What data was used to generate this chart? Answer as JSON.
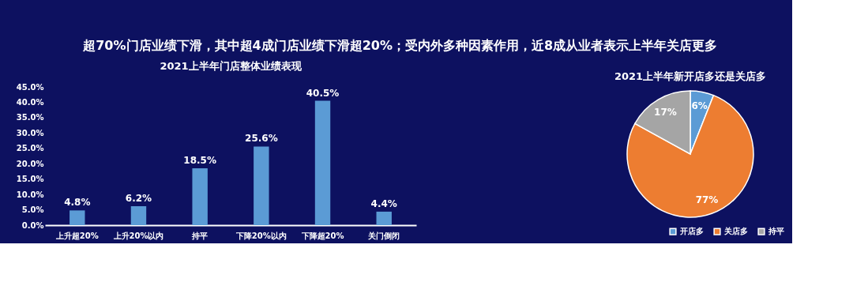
{
  "chart_data": [
    {
      "type": "bar",
      "title": "2021上半年门店整体业绩表现",
      "annotations": [
        "超70%门店业绩下滑，其中超4成门店业绩下滑超20%；受内外多种因素作用，近8成从业者表示上半年关店更多"
      ],
      "categories": [
        "上升超20%",
        "上升20%以内",
        "持平",
        "下降20%以内",
        "下降超20%",
        "关门倒闭"
      ],
      "values": [
        4.8,
        6.2,
        18.5,
        25.6,
        40.5,
        4.4
      ],
      "value_labels": [
        "4.8%",
        "6.2%",
        "18.5%",
        "25.6%",
        "40.5%",
        "4.4%"
      ],
      "color": "#5b9bd5",
      "ylim": [
        0,
        45
      ],
      "yticks": [
        {
          "value": 0,
          "label": "0.0%"
        },
        {
          "value": 5,
          "label": "5.0%"
        },
        {
          "value": 10,
          "label": "10.0%"
        },
        {
          "value": 15,
          "label": "15.0%"
        },
        {
          "value": 20,
          "label": "20.0%"
        },
        {
          "value": 25,
          "label": "25.0%"
        },
        {
          "value": 30,
          "label": "30.0%"
        },
        {
          "value": 35,
          "label": "35.0%"
        },
        {
          "value": 40,
          "label": "40.0%"
        },
        {
          "value": 45,
          "label": "45.0%"
        }
      ],
      "grid": false
    },
    {
      "type": "pie",
      "title": "2021上半年新开店多还是关店多",
      "categories": [
        "开店多",
        "关店多",
        "持平"
      ],
      "values": [
        6,
        77,
        17
      ],
      "value_labels": [
        "6%",
        "77%",
        "17%"
      ],
      "colors": [
        "#5b9bd5",
        "#ed7d31",
        "#a5a5a5"
      ],
      "legend": "bottom"
    }
  ]
}
